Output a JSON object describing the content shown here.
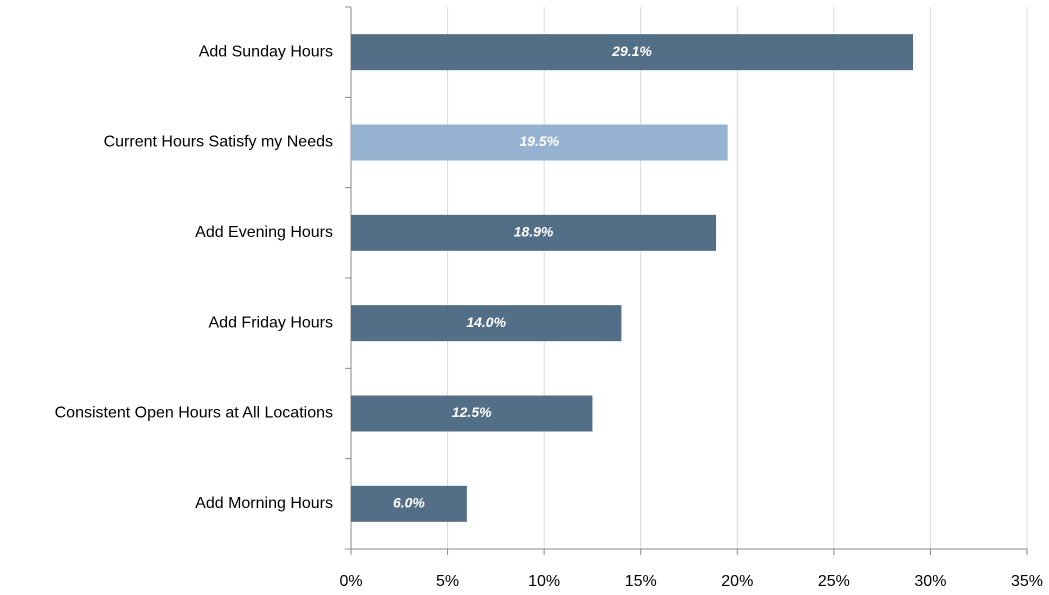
{
  "chart_data": {
    "type": "barh",
    "categories": [
      "Add Sunday Hours",
      "Current Hours Satisfy my Needs",
      "Add Evening Hours",
      "Add Friday Hours",
      "Consistent Open Hours at All Locations",
      "Add Morning Hours"
    ],
    "values": [
      29.1,
      19.5,
      18.9,
      14.0,
      12.5,
      6.0
    ],
    "value_labels": [
      "29.1%",
      "19.5%",
      "18.9%",
      "14.0%",
      "12.5%",
      "6.0%"
    ],
    "colors": [
      "#536e87",
      "#95b3d1",
      "#536e87",
      "#536e87",
      "#536e87",
      "#536e87"
    ],
    "xlim": [
      0,
      35
    ],
    "xticks": [
      {
        "value": 0,
        "label": "0%"
      },
      {
        "value": 5,
        "label": "5%"
      },
      {
        "value": 10,
        "label": "10%"
      },
      {
        "value": 15,
        "label": "15%"
      },
      {
        "value": 20,
        "label": "20%"
      },
      {
        "value": 25,
        "label": "25%"
      },
      {
        "value": 30,
        "label": "30%"
      },
      {
        "value": 35,
        "label": "35%"
      }
    ],
    "grid": true
  }
}
